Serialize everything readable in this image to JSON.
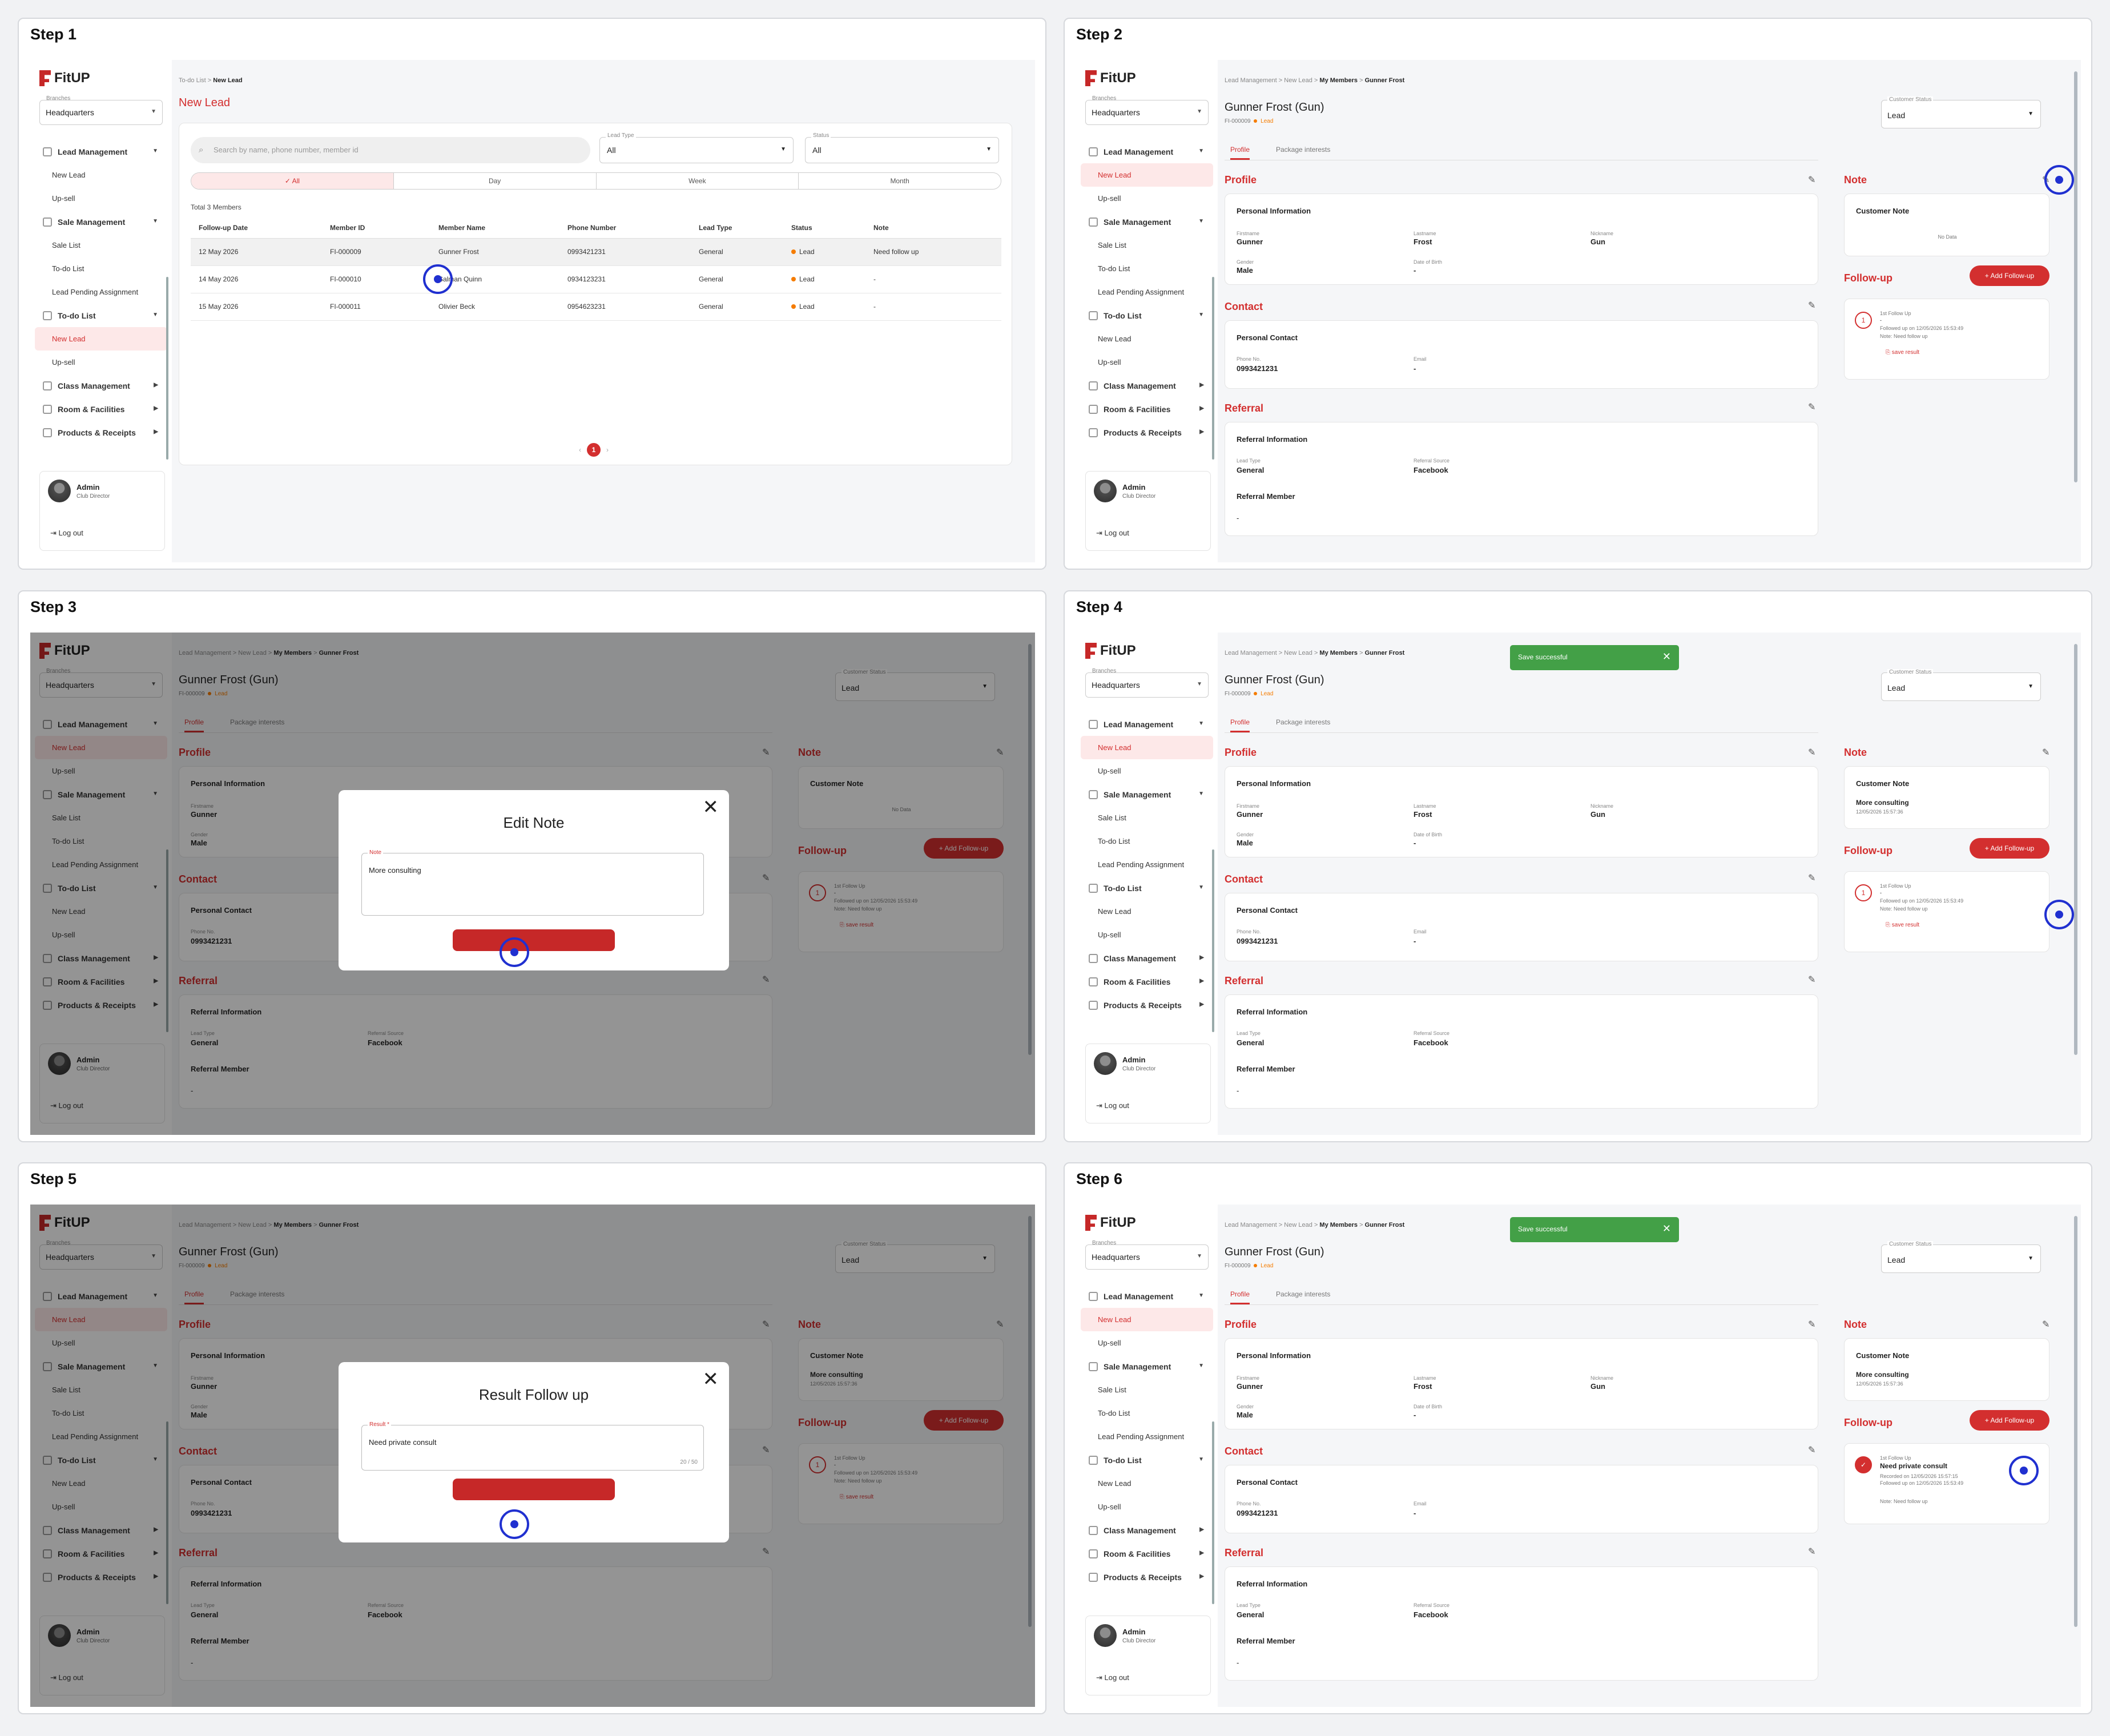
{
  "steps": [
    "Step 1",
    "Step 2",
    "Step 3",
    "Step 4",
    "Step 5",
    "Step 6"
  ],
  "app": {
    "brand": "FitUP",
    "branch_label": "Branches",
    "branch_value": "Headquarters",
    "nav": {
      "lead_management": "Lead Management",
      "new_lead": "New Lead",
      "up_sell": "Up-sell",
      "sale_management": "Sale Management",
      "sale_list": "Sale List",
      "todo_list_item": "To-do List",
      "lead_pending": "Lead Pending Assignment",
      "todo_list_group": "To-do List",
      "class_management": "Class Management",
      "room_facilities": "Room & Facilities",
      "products_receipts": "Products & Receipts"
    },
    "user": {
      "name": "Admin",
      "role": "Club Director",
      "logout": "Log out"
    }
  },
  "list_page": {
    "crumb_parent": "To-do List",
    "crumb_sep": ">",
    "crumb_current": "New Lead",
    "title": "New Lead",
    "search_placeholder": "Search by name, phone number, member id",
    "lead_type_label": "Lead Type",
    "lead_type_value": "All",
    "status_label": "Status",
    "status_value": "All",
    "segments": [
      "✓ All",
      "Day",
      "Week",
      "Month"
    ],
    "total": "Total 3 Members",
    "columns": [
      "Follow-up Date",
      "Member ID",
      "Member Name",
      "Phone Number",
      "Lead Type",
      "Status",
      "Note"
    ],
    "rows": [
      [
        "12 May 2026",
        "FI-000009",
        "Gunner Frost",
        "0993421231",
        "General",
        "Lead",
        "Need follow up"
      ],
      [
        "14 May 2026",
        "FI-000010",
        "Salman Quinn",
        "0934123231",
        "General",
        "Lead",
        "-"
      ],
      [
        "15 May 2026",
        "FI-000011",
        "Olivier Beck",
        "0954623231",
        "General",
        "Lead",
        "-"
      ]
    ],
    "page": "1"
  },
  "detail": {
    "crumbs": [
      "Lead Management",
      ">",
      "New Lead",
      ">",
      "My Members",
      ">",
      "Gunner Frost"
    ],
    "title": "Gunner Frost (Gun)",
    "member_id": "FI-000009",
    "status_badge": "Lead",
    "customer_status_label": "Customer Status",
    "customer_status_value": "Lead",
    "tabs": [
      "Profile",
      "Package interests"
    ],
    "profile_title": "Profile",
    "personal_info": "Personal Information",
    "fields": {
      "firstname_label": "Firstname",
      "firstname": "Gunner",
      "lastname_label": "Lastname",
      "lastname": "Frost",
      "nickname_label": "Nickname",
      "nickname": "Gun",
      "gender_label": "Gender",
      "gender": "Male",
      "dob_label": "Date of Birth",
      "dob": "-"
    },
    "contact_title": "Contact",
    "personal_contact": "Personal Contact",
    "phone_label": "Phone No.",
    "phone": "0993421231",
    "email_label": "Email",
    "email": "-",
    "referral_title": "Referral",
    "referral_info": "Referral Information",
    "lead_type_label": "Lead Type",
    "lead_type": "General",
    "ref_source_label": "Referral Source",
    "ref_source": "Facebook",
    "referral_member": "Referral Member",
    "referral_member_value": "-",
    "note_title": "Note",
    "customer_note": "Customer Note",
    "no_data": "No Data",
    "note_value": "More consulting",
    "note_date": "12/05/2026 15:57:36",
    "followup_title": "Follow-up",
    "add_followup": "+ Add Follow-up",
    "fu_label": "1st Follow Up",
    "fu_dash": "-",
    "fu_followed": "Followed up on 12/05/2026 15:53:49",
    "fu_note": "Note: Need follow up",
    "fu_save": "save result",
    "fu_result": "Need private consult",
    "fu_recorded": "Recorded on 12/05/2026 15:57:15",
    "fu_followed2": "Followed up on 12/05/2026 15:53:49",
    "toast": "Save successful"
  },
  "edit_note": {
    "title": "Edit Note",
    "label": "Note",
    "value": "More consulting"
  },
  "result_modal": {
    "title": "Result Follow up",
    "label": "Result *",
    "value": "Need private consult",
    "counter": "20 / 50"
  }
}
